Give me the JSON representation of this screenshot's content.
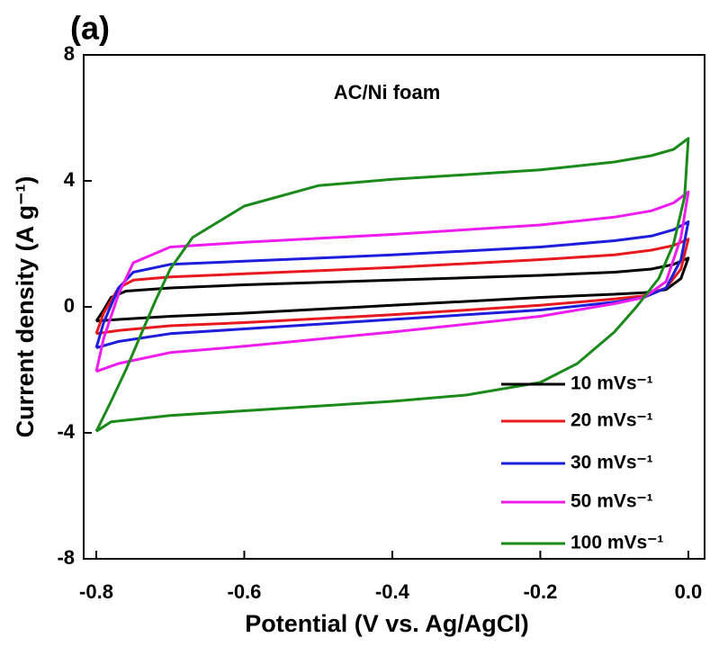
{
  "chart_data": {
    "type": "line",
    "title": "(a)",
    "annotation": "AC/Ni foam",
    "x_label": "Potential (V vs. Ag/AgCl)",
    "y_label": "Current density (A g⁻¹)",
    "xlim": [
      -0.817,
      0.022
    ],
    "ylim": [
      -8,
      8
    ],
    "xticks": [
      -0.8,
      -0.6,
      -0.4,
      -0.2,
      {
        "value": 0,
        "label": "0.0"
      }
    ],
    "yticks": [
      -8,
      -4,
      0,
      4,
      8
    ],
    "legend": "lower right",
    "series": [
      {
        "name": "10 mVs⁻¹",
        "color": "#000000",
        "x": [
          -0.8,
          -0.79,
          -0.78,
          -0.76,
          -0.7,
          -0.6,
          -0.4,
          -0.2,
          -0.1,
          -0.05,
          -0.02,
          0.0,
          -0.01,
          -0.03,
          -0.06,
          -0.1,
          -0.2,
          -0.4,
          -0.6,
          -0.7,
          -0.77,
          -0.8
        ],
        "values": [
          -0.45,
          -0.1,
          0.3,
          0.5,
          0.6,
          0.7,
          0.85,
          1.0,
          1.1,
          1.2,
          1.35,
          1.55,
          0.9,
          0.55,
          0.45,
          0.4,
          0.3,
          0.05,
          -0.2,
          -0.3,
          -0.4,
          -0.45
        ]
      },
      {
        "name": "20 mVs⁻¹",
        "color": "#e8191e",
        "x": [
          -0.8,
          -0.79,
          -0.77,
          -0.75,
          -0.7,
          -0.6,
          -0.4,
          -0.2,
          -0.1,
          -0.05,
          -0.02,
          0.0,
          -0.01,
          -0.03,
          -0.06,
          -0.1,
          -0.2,
          -0.4,
          -0.6,
          -0.7,
          -0.77,
          -0.8
        ],
        "values": [
          -0.85,
          -0.2,
          0.6,
          0.85,
          0.95,
          1.05,
          1.25,
          1.5,
          1.65,
          1.8,
          1.95,
          2.15,
          1.2,
          0.6,
          0.35,
          0.25,
          0.05,
          -0.25,
          -0.5,
          -0.6,
          -0.75,
          -0.85
        ]
      },
      {
        "name": "30 mVs⁻¹",
        "color": "#1d1ddb",
        "x": [
          -0.8,
          -0.79,
          -0.77,
          -0.75,
          -0.7,
          -0.6,
          -0.4,
          -0.2,
          -0.1,
          -0.05,
          -0.02,
          0.0,
          -0.01,
          -0.03,
          -0.06,
          -0.1,
          -0.2,
          -0.4,
          -0.6,
          -0.7,
          -0.77,
          -0.8
        ],
        "values": [
          -1.3,
          -0.5,
          0.6,
          1.1,
          1.35,
          1.45,
          1.65,
          1.9,
          2.1,
          2.25,
          2.45,
          2.7,
          1.5,
          0.6,
          0.3,
          0.15,
          -0.1,
          -0.4,
          -0.7,
          -0.85,
          -1.1,
          -1.3
        ]
      },
      {
        "name": "50 mVs⁻¹",
        "color": "#ee1cee",
        "x": [
          -0.8,
          -0.79,
          -0.77,
          -0.75,
          -0.7,
          -0.6,
          -0.4,
          -0.2,
          -0.1,
          -0.05,
          -0.02,
          0.0,
          -0.01,
          -0.03,
          -0.06,
          -0.1,
          -0.2,
          -0.4,
          -0.6,
          -0.7,
          -0.77,
          -0.8
        ],
        "values": [
          -2.05,
          -1.0,
          0.4,
          1.4,
          1.9,
          2.05,
          2.3,
          2.6,
          2.85,
          3.05,
          3.3,
          3.65,
          2.2,
          0.8,
          0.3,
          0.1,
          -0.3,
          -0.8,
          -1.25,
          -1.45,
          -1.8,
          -2.05
        ]
      },
      {
        "name": "100 mVs⁻¹",
        "color": "#1a8a1a",
        "x": [
          -0.8,
          -0.78,
          -0.76,
          -0.74,
          -0.72,
          -0.7,
          -0.67,
          -0.6,
          -0.5,
          -0.4,
          -0.2,
          -0.1,
          -0.05,
          -0.02,
          0.0,
          -0.005,
          -0.02,
          -0.04,
          -0.07,
          -0.1,
          -0.15,
          -0.2,
          -0.3,
          -0.4,
          -0.5,
          -0.6,
          -0.7,
          -0.78,
          -0.8
        ],
        "values": [
          -3.95,
          -3.0,
          -2.0,
          -0.9,
          0.2,
          1.2,
          2.2,
          3.2,
          3.85,
          4.05,
          4.35,
          4.6,
          4.8,
          5.0,
          5.35,
          3.5,
          2.0,
          0.9,
          0.0,
          -0.8,
          -1.8,
          -2.4,
          -2.8,
          -3.0,
          -3.15,
          -3.3,
          -3.45,
          -3.65,
          -3.95
        ]
      }
    ]
  }
}
